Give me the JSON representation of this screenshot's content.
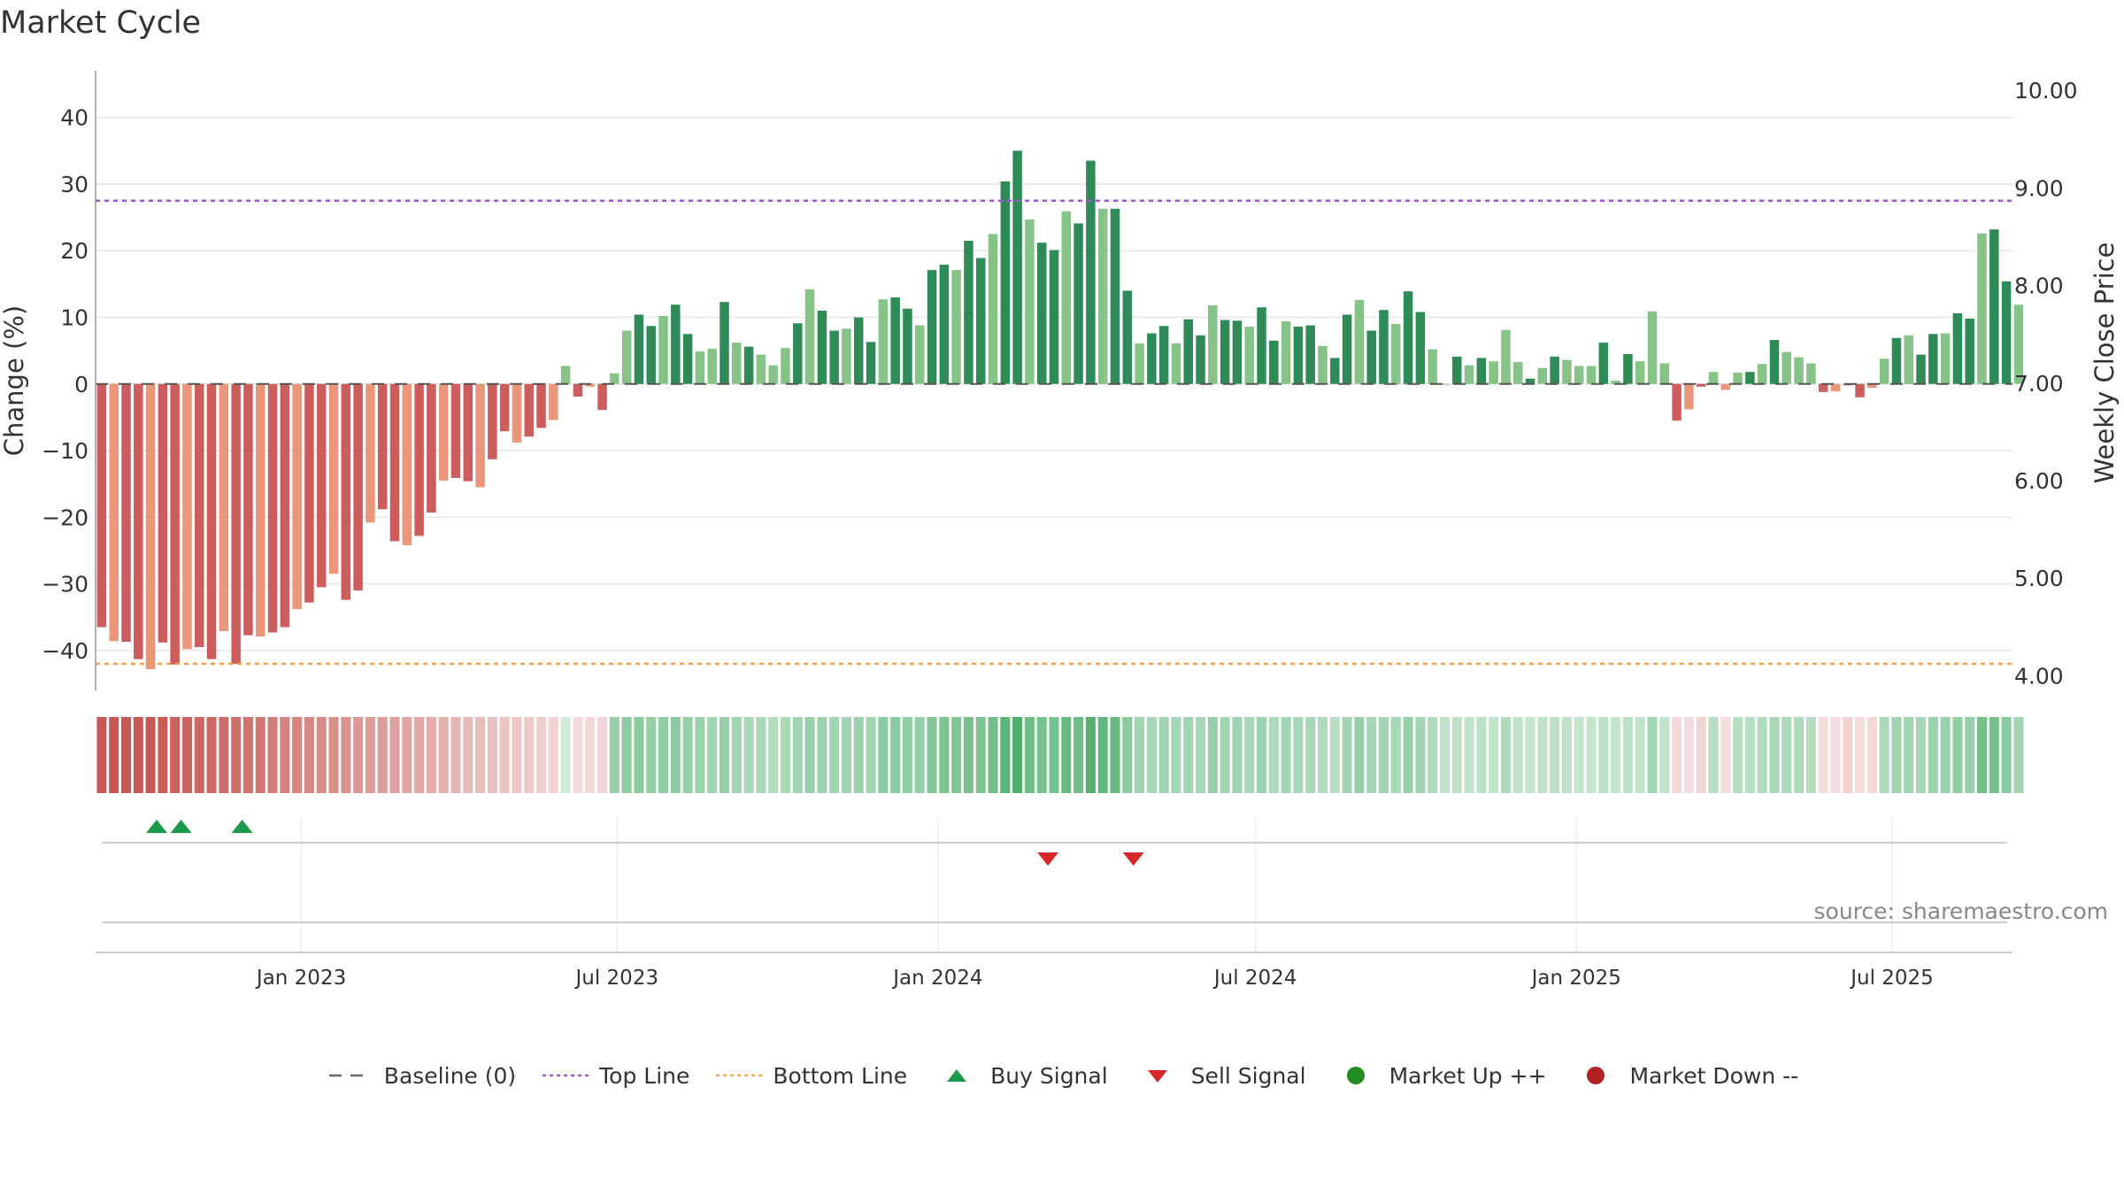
{
  "title": "Market Cycle",
  "source_label": "source: sharemaestro.com",
  "chart_data": {
    "type": "bar",
    "title": "Market Cycle",
    "ylabel": "Change (%)",
    "y2label": "Weekly Close Price",
    "ylim": [
      -46,
      47
    ],
    "y2lim": [
      3.85,
      10.2
    ],
    "yticks": [
      40,
      30,
      20,
      10,
      0,
      -10,
      -20,
      -30,
      -40
    ],
    "y2ticks": [
      "10.00",
      "9.00",
      "8.00",
      "7.00",
      "6.00",
      "5.00",
      "4.00"
    ],
    "x_start": "2022-09-05",
    "x_end": "2025-09-08",
    "x_ticks": [
      {
        "date": "2023-01-01",
        "label": "Jan 2023"
      },
      {
        "date": "2023-07-01",
        "label": "Jul 2023"
      },
      {
        "date": "2024-01-01",
        "label": "Jan 2024"
      },
      {
        "date": "2024-07-01",
        "label": "Jul 2024"
      },
      {
        "date": "2025-01-01",
        "label": "Jan 2025"
      },
      {
        "date": "2025-07-01",
        "label": "Jul 2025"
      }
    ],
    "top_line": 27.5,
    "bottom_line": -42,
    "baseline": 0,
    "first_week": "2022-09-05",
    "values": [
      -36.5,
      -38.6,
      -38.7,
      -41.3,
      -42.8,
      -38.8,
      -42.1,
      -39.8,
      -39.5,
      -41.3,
      -37.1,
      -42.0,
      -37.7,
      -37.9,
      -37.3,
      -36.5,
      -33.8,
      -32.8,
      -30.5,
      -28.5,
      -32.4,
      -31.0,
      -20.8,
      -18.8,
      -23.6,
      -24.2,
      -22.8,
      -19.3,
      -14.5,
      -14.1,
      -14.6,
      -15.5,
      -11.3,
      -7.1,
      -8.8,
      -7.9,
      -6.6,
      -5.4,
      2.7,
      -1.9,
      -0.4,
      -3.9,
      1.6,
      8.0,
      10.4,
      8.7,
      10.2,
      11.9,
      7.5,
      4.9,
      5.3,
      12.3,
      6.2,
      5.6,
      4.4,
      2.8,
      5.4,
      9.1,
      14.2,
      11.0,
      8.0,
      8.3,
      10.0,
      6.3,
      12.7,
      13.0,
      11.3,
      8.8,
      17.1,
      17.9,
      17.1,
      21.5,
      18.9,
      22.5,
      30.4,
      35.0,
      24.7,
      21.2,
      20.1,
      25.9,
      24.1,
      33.5,
      26.3,
      26.3,
      14.0,
      6.1,
      7.6,
      8.7,
      6.1,
      9.7,
      7.3,
      11.8,
      9.6,
      9.5,
      8.6,
      11.5,
      6.5,
      9.4,
      8.6,
      8.8,
      5.7,
      3.9,
      10.4,
      12.6,
      8.0,
      11.1,
      9.0,
      13.9,
      10.8,
      5.2,
      0.0,
      4.1,
      2.8,
      3.9,
      3.4,
      8.1,
      3.3,
      0.8,
      2.4,
      4.1,
      3.6,
      2.7,
      2.7,
      6.2,
      0.5,
      4.5,
      3.4,
      10.9,
      3.1,
      -5.5,
      -3.8,
      -0.4,
      1.8,
      -0.9,
      1.7,
      1.8,
      3.0,
      6.6,
      4.8,
      4.0,
      3.1,
      -1.2,
      -1.1,
      -0.2,
      -2.0,
      -0.6,
      3.8,
      6.9,
      7.3,
      4.4,
      7.5,
      7.6,
      10.6,
      9.8,
      22.6,
      23.2,
      15.4,
      11.9
    ],
    "heat_weights": [
      0.95,
      0.95,
      0.95,
      0.95,
      0.95,
      0.92,
      0.9,
      0.88,
      0.87,
      0.85,
      0.83,
      0.82,
      0.8,
      0.78,
      0.75,
      0.72,
      0.7,
      0.68,
      0.66,
      0.64,
      0.62,
      0.6,
      0.58,
      0.56,
      0.54,
      0.52,
      0.5,
      0.48,
      0.45,
      0.42,
      0.4,
      0.38,
      0.36,
      0.34,
      0.32,
      0.3,
      0.28,
      0.25,
      0.22,
      0.2,
      0.22,
      0.24,
      0.5,
      0.55,
      0.55,
      0.5,
      0.52,
      0.55,
      0.5,
      0.48,
      0.45,
      0.5,
      0.45,
      0.42,
      0.4,
      0.38,
      0.4,
      0.45,
      0.5,
      0.48,
      0.45,
      0.45,
      0.48,
      0.45,
      0.55,
      0.55,
      0.52,
      0.5,
      0.6,
      0.62,
      0.6,
      0.65,
      0.62,
      0.68,
      0.78,
      0.85,
      0.7,
      0.65,
      0.65,
      0.72,
      0.7,
      0.82,
      0.75,
      0.72,
      0.55,
      0.45,
      0.42,
      0.45,
      0.42,
      0.45,
      0.42,
      0.5,
      0.45,
      0.45,
      0.42,
      0.48,
      0.4,
      0.45,
      0.42,
      0.42,
      0.38,
      0.35,
      0.45,
      0.5,
      0.42,
      0.45,
      0.42,
      0.5,
      0.45,
      0.38,
      0.3,
      0.32,
      0.3,
      0.32,
      0.3,
      0.38,
      0.3,
      0.28,
      0.3,
      0.32,
      0.3,
      0.28,
      0.28,
      0.32,
      0.28,
      0.32,
      0.3,
      0.45,
      0.3,
      0.22,
      0.2,
      0.25,
      0.35,
      0.2,
      0.35,
      0.35,
      0.38,
      0.42,
      0.4,
      0.38,
      0.36,
      0.2,
      0.2,
      0.25,
      0.2,
      0.22,
      0.4,
      0.45,
      0.45,
      0.42,
      0.48,
      0.48,
      0.52,
      0.5,
      0.65,
      0.65,
      0.55,
      0.45
    ],
    "buy_signals": [
      "2022-10-10",
      "2022-10-24",
      "2022-11-28"
    ],
    "sell_signals": [
      "2024-03-04",
      "2024-04-22"
    ],
    "colors": {
      "up_strong": "#2e8b57",
      "up_light": "#86c386",
      "down_strong": "#cd5c5c",
      "down_light": "#e9967a",
      "top_line": "#9b59d0",
      "bottom_line": "#f0a050",
      "buy": "#1a9a4a",
      "sell": "#d62728",
      "market_up": "#228b22",
      "market_down": "#b22222",
      "grid": "#e6e6e6"
    },
    "legend": {
      "placement": "bottom-center",
      "entries": [
        {
          "label": "Baseline (0)",
          "symbol": "dash",
          "color": "#666666"
        },
        {
          "label": "Top Line",
          "symbol": "dotted",
          "color": "#9b59d0"
        },
        {
          "label": "Bottom Line",
          "symbol": "dotted",
          "color": "#f0a050"
        },
        {
          "label": "Buy Signal",
          "symbol": "triangle-up",
          "color": "#1a9a4a"
        },
        {
          "label": "Sell Signal",
          "symbol": "triangle-down",
          "color": "#d62728"
        },
        {
          "label": "Market Up ++",
          "symbol": "circle",
          "color": "#228b22"
        },
        {
          "label": "Market Down --",
          "symbol": "circle",
          "color": "#b22222"
        }
      ]
    }
  }
}
